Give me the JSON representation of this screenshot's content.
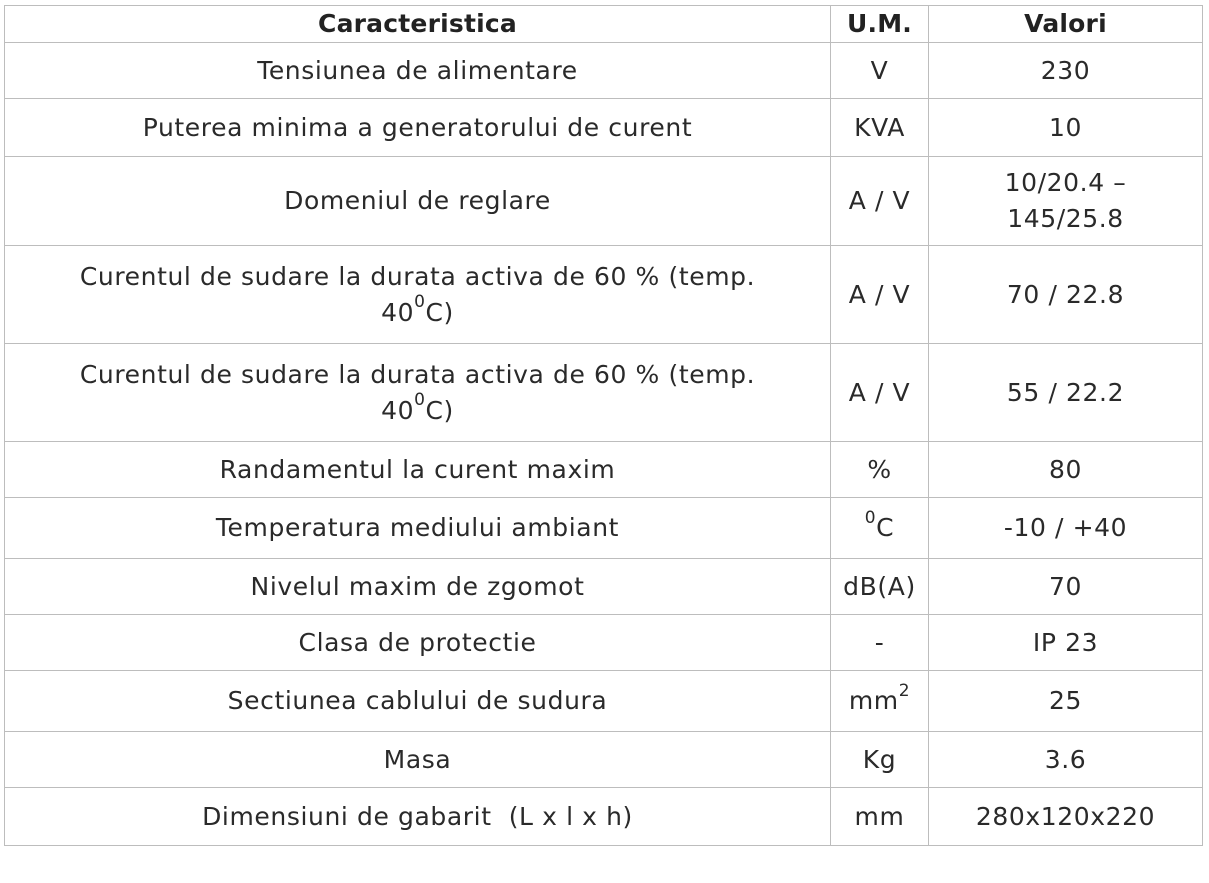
{
  "table": {
    "headers": [
      "Caracteristica",
      "U.M.",
      "Valori"
    ],
    "rows": [
      {
        "c1": "Tensiunea de alimentare",
        "c2": "V",
        "c3": "230"
      },
      {
        "c1": "Puterea minima a generatorului de curent",
        "c2": "KVA",
        "c3": "10"
      },
      {
        "c1": "Domeniul de reglare",
        "c2": "A / V",
        "c3a": "10/20.4 –",
        "c3b": "145/25.8"
      },
      {
        "c1a": "Curentul de sudare la durata activa de 60 % (temp.",
        "c1b_pre": "40",
        "c1b_sup": "0",
        "c1b_post": "C)",
        "c2": "A / V",
        "c3": "70 / 22.8"
      },
      {
        "c1a": "Curentul de sudare la durata activa de 60 % (temp.",
        "c1b_pre": "40",
        "c1b_sup": "0",
        "c1b_post": "C)",
        "c2": "A / V",
        "c3": "55 / 22.2"
      },
      {
        "c1": "Randamentul la curent maxim",
        "c2": "%",
        "c3": "80"
      },
      {
        "c1": "Temperatura mediului ambiant",
        "c2_sup": "0",
        "c2_post": "C",
        "c3": "-10 / +40"
      },
      {
        "c1": "Nivelul maxim de zgomot",
        "c2": "dB(A)",
        "c3": "70"
      },
      {
        "c1": "Clasa de protectie",
        "c2": "-",
        "c3": "IP 23"
      },
      {
        "c1": "Sectiunea cablului de sudura",
        "c2_pre": "mm",
        "c2_sup": "2",
        "c3": "25"
      },
      {
        "c1": "Masa",
        "c2": "Kg",
        "c3": "3.6"
      },
      {
        "c1": "Dimensiuni de gabarit  (L x l x h)",
        "c2": "mm",
        "c3": "280x120x220"
      }
    ]
  }
}
